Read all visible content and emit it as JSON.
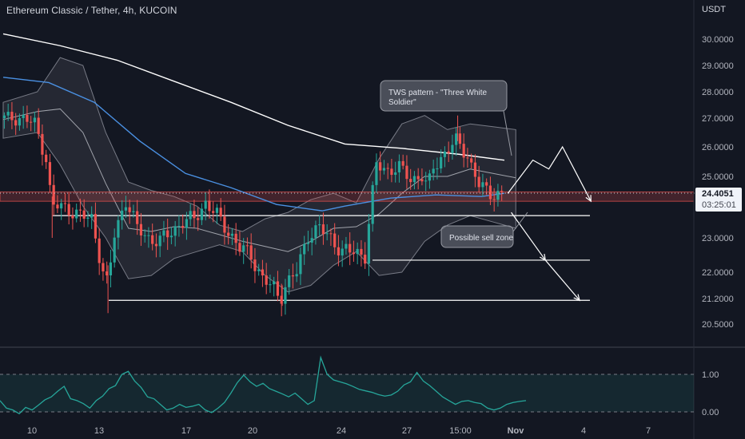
{
  "header": {
    "title": "Ethereum Classic / Tether, 4h, KUCOIN",
    "currency": "USDT"
  },
  "price_tag": {
    "price": "24.4051",
    "countdown": "03:25:01"
  },
  "annotations": {
    "tws_line1": "TWS pattern - \"Three White",
    "tws_line2": "Soldier\"",
    "sell_zone": "Possible sell zone"
  },
  "colors": {
    "background": "#131722",
    "up": "#26a69a",
    "down": "#ef5350",
    "ma_slow": "#ffffff",
    "ma_fast": "#4a90e2",
    "oscillator": "#26a69a",
    "zone": "#ef5350"
  },
  "chart_data": [
    {
      "type": "candlestick",
      "title": "Ethereum Classic / Tether, 4h, KUCOIN",
      "y_unit": "USDT",
      "y_ticks": [
        "30.0000",
        "29.0000",
        "28.0000",
        "27.0000",
        "26.0000",
        "25.0000",
        "23.0000",
        "22.0000",
        "21.2000",
        "20.5000"
      ],
      "y_tick_values": [
        30,
        29,
        28,
        27,
        26,
        25,
        23,
        22,
        21.2,
        20.5
      ],
      "x_ticks": [
        "10",
        "13",
        "17",
        "20",
        "24",
        "27",
        "15:00",
        "Nov",
        "4",
        "7"
      ],
      "last_price": 24.4051,
      "horizontal_levels": [
        23.7,
        22.35,
        21.15
      ],
      "resistance_zone": [
        24.15,
        24.45
      ],
      "series": [
        {
          "name": "slow MA",
          "points": [
            [
              0,
              30.2
            ],
            [
              5,
              29.75
            ],
            [
              10,
              29.2
            ],
            [
              15,
              28.4
            ],
            [
              20,
              27.6
            ],
            [
              25,
              26.75
            ],
            [
              30,
              26.1
            ],
            [
              35,
              25.95
            ],
            [
              40,
              25.75
            ],
            [
              44,
              25.55
            ]
          ]
        },
        {
          "name": "fast MA",
          "points": [
            [
              0,
              28.55
            ],
            [
              4,
              28.35
            ],
            [
              8,
              27.6
            ],
            [
              12,
              26.2
            ],
            [
              16,
              25.1
            ],
            [
              20,
              24.6
            ],
            [
              24,
              24.05
            ],
            [
              28,
              23.85
            ],
            [
              30,
              24.0
            ],
            [
              34,
              24.25
            ],
            [
              38,
              24.35
            ],
            [
              42,
              24.3
            ],
            [
              44,
              24.4
            ]
          ]
        }
      ],
      "projections": [
        [
          [
            44.3,
            24.4
          ],
          [
            46.5,
            25.55
          ],
          [
            47.9,
            25.25
          ],
          [
            49.1,
            26.0
          ],
          [
            51.6,
            24.15
          ]
        ],
        [
          [
            44.6,
            23.8
          ],
          [
            47.6,
            22.35
          ]
        ],
        [
          [
            47.6,
            22.35
          ],
          [
            50.6,
            21.15
          ]
        ]
      ]
    },
    {
      "type": "line",
      "title": "",
      "y_ticks": [
        "1.00",
        "0.00"
      ],
      "y_tick_values": [
        1,
        0
      ],
      "x_ticks": [
        "10",
        "13",
        "17",
        "20",
        "24",
        "27",
        "15:00",
        "Nov",
        "4",
        "7"
      ],
      "values": [
        0.3,
        0.1,
        0.05,
        -0.05,
        0.12,
        0.05,
        0.18,
        0.32,
        0.4,
        0.55,
        0.68,
        0.35,
        0.3,
        0.22,
        0.1,
        0.3,
        0.42,
        0.62,
        0.7,
        1.0,
        1.08,
        0.82,
        0.65,
        0.4,
        0.35,
        0.2,
        0.05,
        0.1,
        0.2,
        0.12,
        0.15,
        0.2,
        0.05,
        -0.02,
        0.1,
        0.25,
        0.5,
        0.78,
        0.98,
        0.8,
        0.68,
        0.76,
        0.62,
        0.55,
        0.48,
        0.4,
        0.5,
        0.35,
        0.2,
        0.3,
        1.45,
        1.0,
        0.85,
        0.8,
        0.75,
        0.68,
        0.6,
        0.56,
        0.52,
        0.46,
        0.42,
        0.45,
        0.55,
        0.72,
        0.8,
        1.05,
        0.82,
        0.7,
        0.55,
        0.4,
        0.3,
        0.2,
        0.28,
        0.3,
        0.25,
        0.22,
        0.1,
        0.05,
        0.1,
        0.2,
        0.25,
        0.28,
        0.3
      ]
    }
  ]
}
